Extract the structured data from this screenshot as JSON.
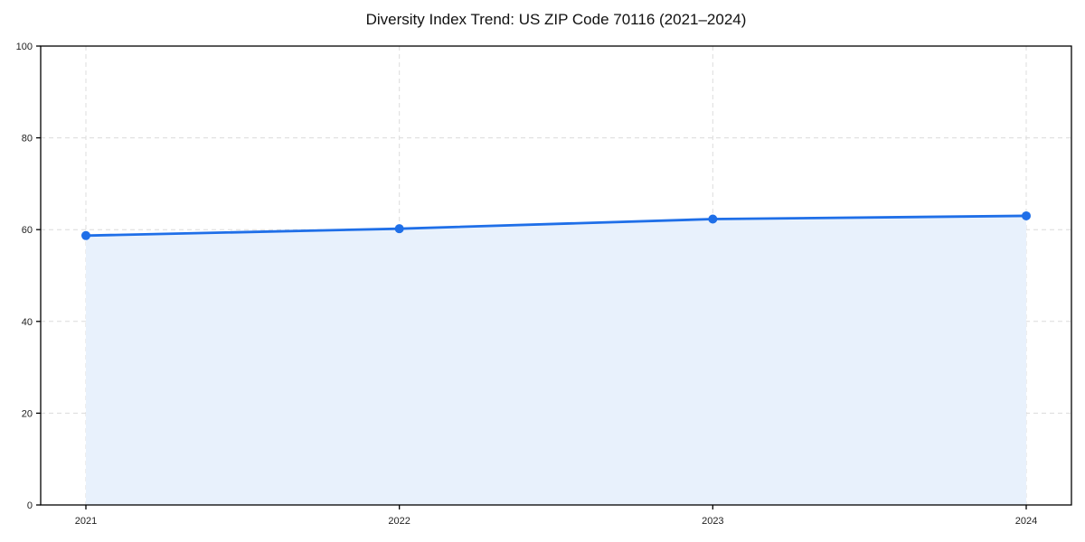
{
  "page": {
    "title": "Diversity Index Trend: US ZIP Code 70116 (2021–2024)"
  },
  "chart_data": {
    "type": "area",
    "categories": [
      "2021",
      "2022",
      "2023",
      "2024"
    ],
    "values": [
      58.7,
      60.2,
      62.3,
      63.0
    ],
    "series": [
      {
        "name": "Diversity Index",
        "values": [
          58.7,
          60.2,
          62.3,
          63.0
        ]
      }
    ],
    "title": "Diversity Index Trend: US ZIP Code 70116 (2021–2024)",
    "xlabel": "",
    "ylabel": "",
    "ylim": [
      0,
      100
    ],
    "yticks": [
      0,
      20,
      40,
      60,
      80,
      100
    ],
    "grid": {
      "visible": true,
      "style": "dashed",
      "color": "#dcdcdc"
    },
    "legend": "none",
    "marker": "circle",
    "colors": {
      "line": "#1f6fe8",
      "marker": "#1f6fe8",
      "fill": "#e8f1fc",
      "axis": "#000000",
      "tick_label": "#222222",
      "title": "#111111",
      "background": "#ffffff"
    }
  }
}
